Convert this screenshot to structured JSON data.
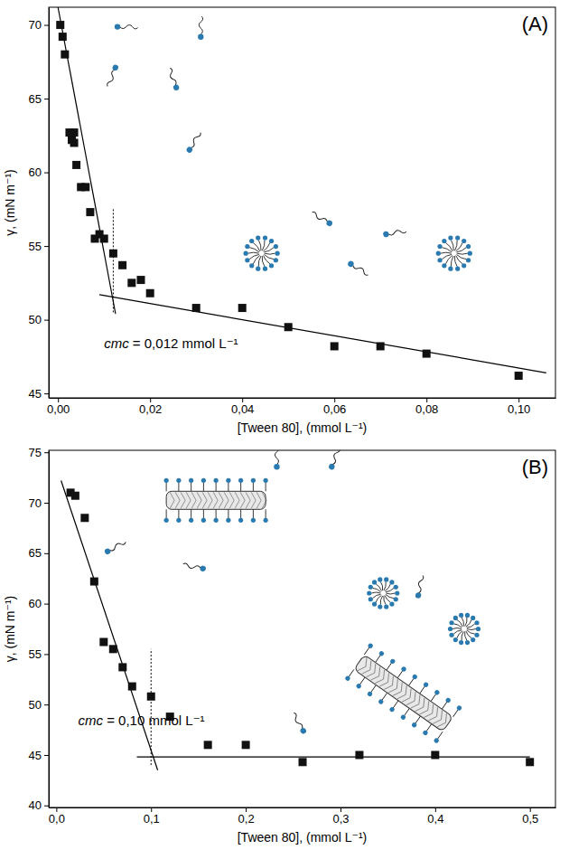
{
  "chart_data": [
    {
      "type": "scatter",
      "title": "(A)",
      "x_label": "[Tween 80], (mmol L⁻¹)",
      "y_label": "γ, (mN m⁻¹)",
      "x": [
        0.0005,
        0.001,
        0.0015,
        0.0025,
        0.003,
        0.0035,
        0.0035,
        0.004,
        0.005,
        0.006,
        0.007,
        0.008,
        0.009,
        0.01,
        0.012,
        0.014,
        0.016,
        0.018,
        0.02,
        0.03,
        0.04,
        0.05,
        0.06,
        0.07,
        0.08,
        0.1
      ],
      "series": [
        {
          "color": "#111111",
          "marker": "square",
          "values": [
            70.0,
            69.2,
            68.0,
            62.7,
            62.2,
            62.7,
            62.0,
            60.5,
            59.0,
            59.0,
            57.3,
            55.5,
            55.8,
            55.5,
            54.5,
            53.7,
            52.5,
            52.7,
            51.8,
            50.8,
            50.8,
            49.5,
            48.2,
            48.2,
            47.7,
            46.2
          ]
        }
      ],
      "fit_lines": [
        {
          "x": [
            0.0,
            0.0125
          ],
          "y": [
            71.2,
            50.4
          ],
          "line_style": "solid"
        },
        {
          "x": [
            0.009,
            0.106
          ],
          "y": [
            51.7,
            46.4
          ],
          "line_style": "solid"
        }
      ],
      "cmc_line": {
        "x": [
          0.012,
          0.012
        ],
        "y": [
          50.5,
          57.6
        ],
        "line_style": "dotted"
      },
      "annotations": [
        {
          "text": "cmc = 0,012 mmol L⁻¹",
          "x": 0.01,
          "y": 48.1
        }
      ],
      "xlim": [
        -0.002,
        0.108
      ],
      "xticks": [
        {
          "value": 0,
          "label": "0,00"
        },
        {
          "value": 0.02,
          "label": "0,02"
        },
        {
          "value": 0.04,
          "label": "0,04"
        },
        {
          "value": 0.06,
          "label": "0,06"
        },
        {
          "value": 0.08,
          "label": "0,08"
        },
        {
          "value": 0.1,
          "label": "0,10"
        }
      ],
      "ylim": [
        44.7,
        71.2
      ],
      "yticks": [
        45,
        50,
        55,
        60,
        65,
        70
      ],
      "grid": false
    },
    {
      "type": "scatter",
      "title": "(B)",
      "x_label": "[Tween 80], (mmol L⁻¹)",
      "y_label": "γ, (mN m⁻¹)",
      "x": [
        0.015,
        0.02,
        0.03,
        0.04,
        0.05,
        0.06,
        0.07,
        0.08,
        0.1,
        0.12,
        0.16,
        0.2,
        0.26,
        0.32,
        0.4,
        0.5
      ],
      "series": [
        {
          "color": "#111111",
          "marker": "square",
          "values": [
            71.0,
            70.7,
            68.5,
            62.2,
            56.2,
            55.5,
            53.7,
            51.8,
            50.8,
            48.8,
            46.0,
            46.0,
            44.3,
            45.0,
            45.0,
            44.3
          ]
        }
      ],
      "fit_lines": [
        {
          "x": [
            0.005,
            0.107
          ],
          "y": [
            72.2,
            43.5
          ],
          "line_style": "solid"
        },
        {
          "x": [
            0.085,
            0.5
          ],
          "y": [
            44.8,
            44.8
          ],
          "line_style": "solid"
        }
      ],
      "cmc_line": {
        "x": [
          0.1,
          0.1
        ],
        "y": [
          44.0,
          55.5
        ],
        "line_style": "dotted"
      },
      "annotations": [
        {
          "text": "cmc = 0,10 mmol L⁻¹",
          "x": 0.023,
          "y": 48.0
        }
      ],
      "xlim": [
        -0.008,
        0.527
      ],
      "xticks": [
        {
          "value": 0,
          "label": "0,0"
        },
        {
          "value": 0.1,
          "label": "0,1"
        },
        {
          "value": 0.2,
          "label": "0,2"
        },
        {
          "value": 0.3,
          "label": "0,3"
        },
        {
          "value": 0.4,
          "label": "0,4"
        },
        {
          "value": 0.5,
          "label": "0,5"
        }
      ],
      "ylim": [
        39.8,
        75.2
      ],
      "yticks": [
        40,
        45,
        50,
        55,
        60,
        65,
        70,
        75
      ],
      "grid": false
    }
  ]
}
